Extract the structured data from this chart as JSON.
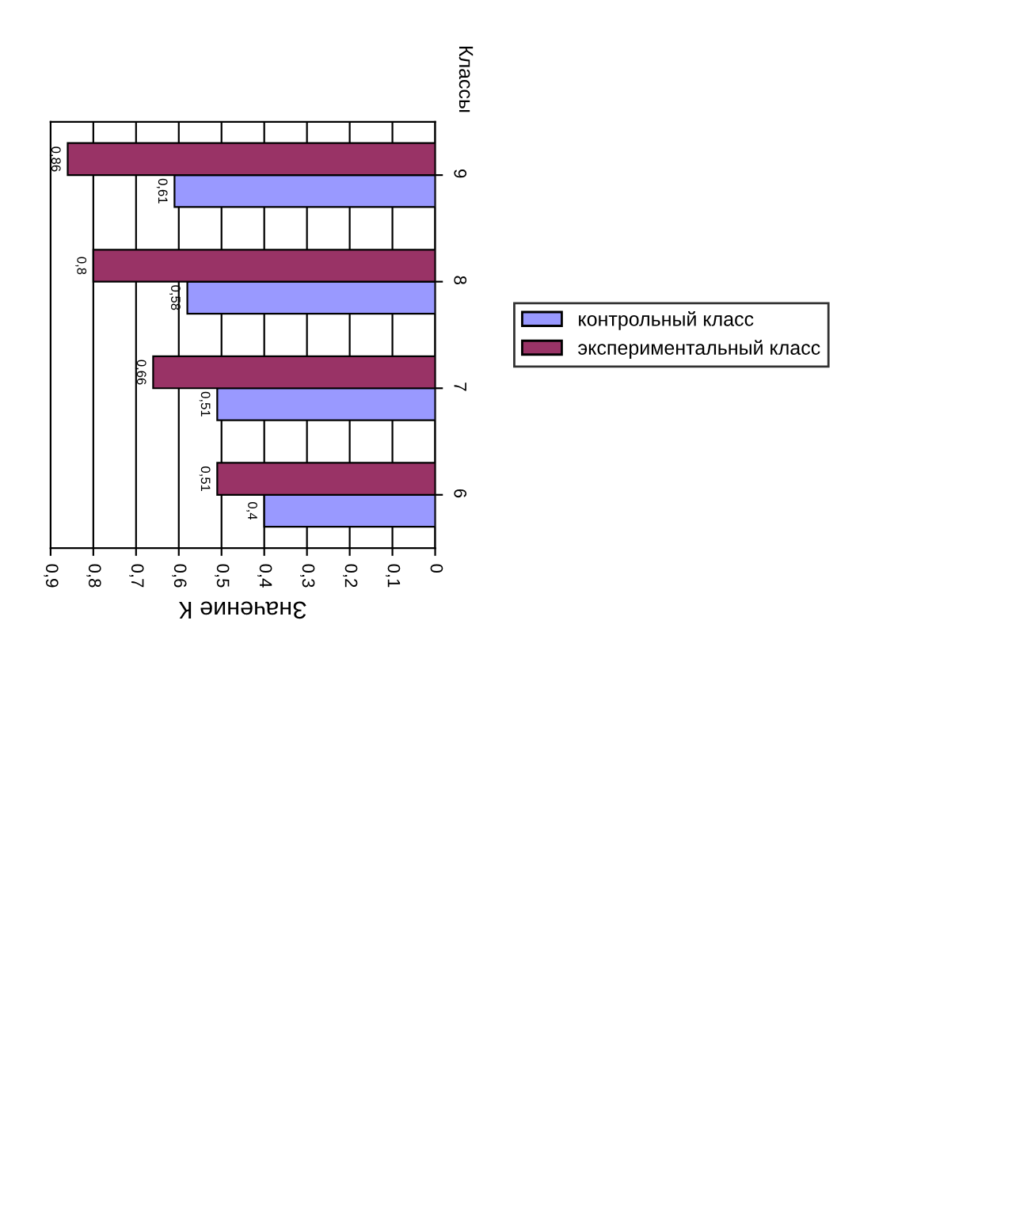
{
  "chart_data": {
    "type": "bar",
    "orientation": "horizontal",
    "xlabel": "Значение К",
    "ylabel": "Классы",
    "categories": [
      "9",
      "8",
      "7",
      "6"
    ],
    "series": [
      {
        "name": "контрольный класс",
        "color": "#9999ff",
        "values": [
          0.61,
          0.58,
          0.51,
          0.4
        ],
        "value_labels": [
          "0,61",
          "0,58",
          "0,51",
          "0,4"
        ]
      },
      {
        "name": "экспериментальный класс",
        "color": "#993366",
        "values": [
          0.86,
          0.8,
          0.66,
          0.51
        ],
        "value_labels": [
          "0,86",
          "0,8",
          "0,66",
          "0,51"
        ]
      }
    ],
    "xlim": [
      0.9,
      0
    ],
    "xticks": [
      0,
      {
        "value": 0.1,
        "label": "0,1"
      },
      {
        "value": 0.2,
        "label": "0,2"
      },
      {
        "value": 0.3,
        "label": "0,3"
      },
      {
        "value": 0.4,
        "label": "0,4"
      },
      {
        "value": 0.5,
        "label": "0,5"
      },
      {
        "value": 0.6,
        "label": "0,6"
      },
      {
        "value": 0.7,
        "label": "0,7"
      },
      {
        "value": 0.8,
        "label": "0,8"
      },
      {
        "value": 0.9,
        "label": "0,9"
      }
    ],
    "grid": "x",
    "legend": "right"
  }
}
